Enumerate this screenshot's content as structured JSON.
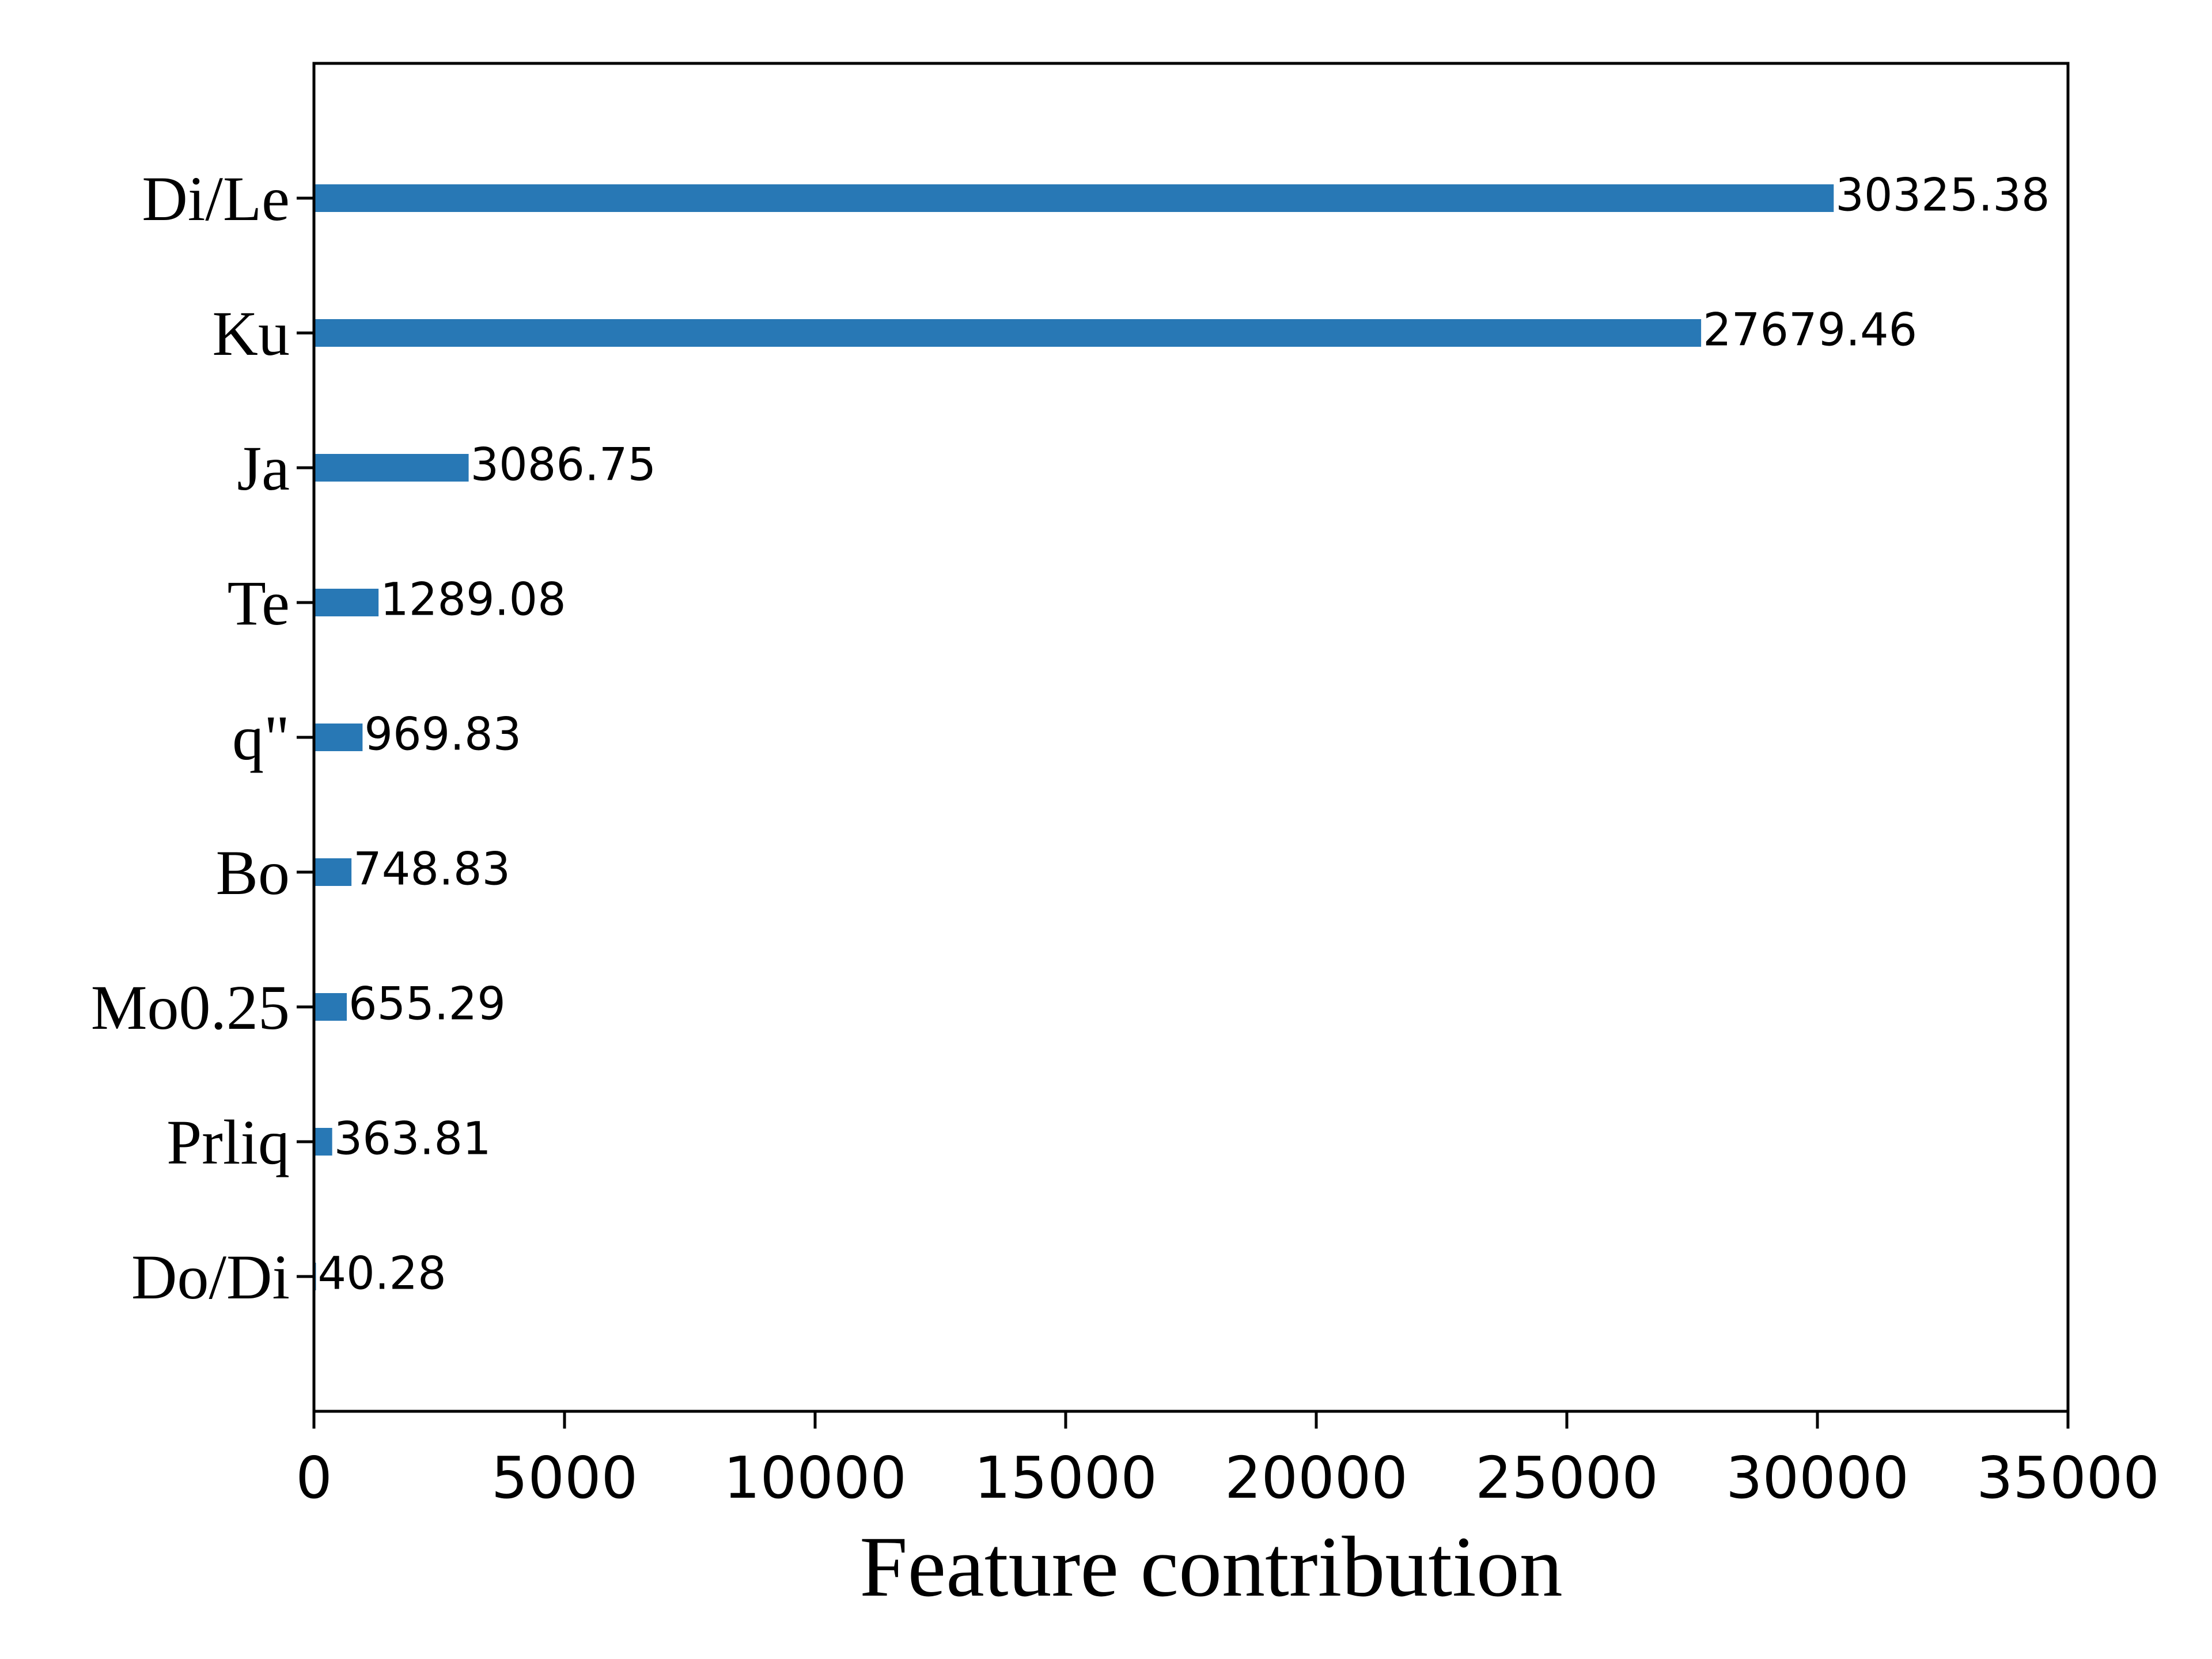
{
  "chart_data": {
    "type": "bar",
    "orientation": "horizontal",
    "categories": [
      "Di/Le",
      "Ku",
      "Ja",
      "Te",
      "q\"",
      "Bo",
      "Mo0.25",
      "Prliq",
      "Do/Di"
    ],
    "values": [
      30325.38,
      27679.46,
      3086.75,
      1289.08,
      969.83,
      748.83,
      655.29,
      363.81,
      40.28
    ],
    "value_labels": [
      "30325.38",
      "27679.46",
      "3086.75",
      "1289.08",
      "969.83",
      "748.83",
      "655.29",
      "363.81",
      "40.28"
    ],
    "xlabel": "Feature contribution",
    "ylabel": "",
    "title": "",
    "xlim": [
      0,
      35000
    ],
    "xticks": [
      0,
      5000,
      10000,
      15000,
      20000,
      25000,
      30000,
      35000
    ],
    "xtick_labels": [
      "0",
      "5000",
      "10000",
      "15000",
      "20000",
      "25000",
      "30000",
      "35000"
    ],
    "grid": false,
    "bar_color": "#2878b5"
  }
}
